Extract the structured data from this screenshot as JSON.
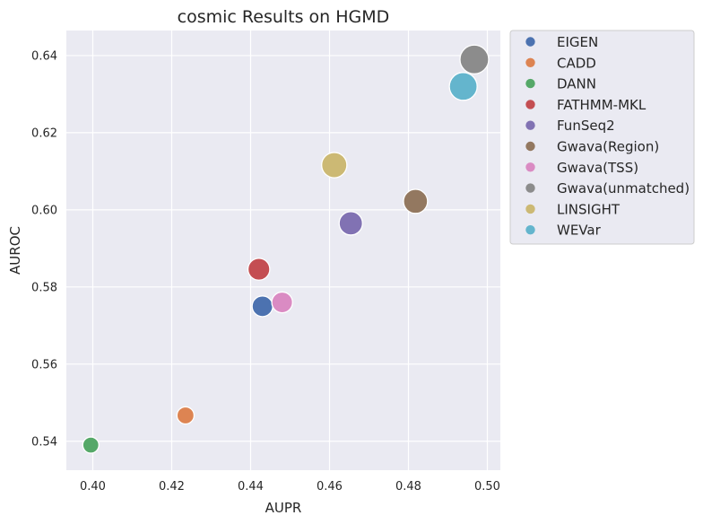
{
  "chart_data": {
    "type": "scatter",
    "title": "cosmic Results on HGMD",
    "xlabel": "AUPR",
    "ylabel": "AUROC",
    "xlim": [
      0.3933,
      0.5033
    ],
    "ylim": [
      0.5325,
      0.6465
    ],
    "xticks": [
      "0.40",
      "0.42",
      "0.44",
      "0.46",
      "0.48",
      "0.50"
    ],
    "yticks": [
      "0.54",
      "0.56",
      "0.58",
      "0.60",
      "0.62",
      "0.64"
    ],
    "grid": true,
    "legend_position": "outside-right",
    "series": [
      {
        "name": "EIGEN",
        "x": 0.443,
        "y": 0.575,
        "size": 0.575,
        "color": "#4c72b0"
      },
      {
        "name": "CADD",
        "x": 0.4235,
        "y": 0.5467,
        "size": 0.5467,
        "color": "#dd8452"
      },
      {
        "name": "DANN",
        "x": 0.3995,
        "y": 0.539,
        "size": 0.539,
        "color": "#55a868"
      },
      {
        "name": "FATHMM-MKL",
        "x": 0.4421,
        "y": 0.5846,
        "size": 0.5846,
        "color": "#c44e52"
      },
      {
        "name": "FunSeq2",
        "x": 0.4654,
        "y": 0.5965,
        "size": 0.5965,
        "color": "#8172b3"
      },
      {
        "name": "Gwava(Region)",
        "x": 0.4818,
        "y": 0.6022,
        "size": 0.6022,
        "color": "#937860"
      },
      {
        "name": "Gwava(TSS)",
        "x": 0.448,
        "y": 0.576,
        "size": 0.576,
        "color": "#da8bc3"
      },
      {
        "name": "Gwava(unmatched)",
        "x": 0.4967,
        "y": 0.639,
        "size": 0.639,
        "color": "#8c8c8c"
      },
      {
        "name": "LINSIGHT",
        "x": 0.4612,
        "y": 0.6116,
        "size": 0.6116,
        "color": "#ccb974"
      },
      {
        "name": "WEVar",
        "x": 0.4939,
        "y": 0.632,
        "size": 0.632,
        "color": "#64b5cd"
      }
    ]
  }
}
